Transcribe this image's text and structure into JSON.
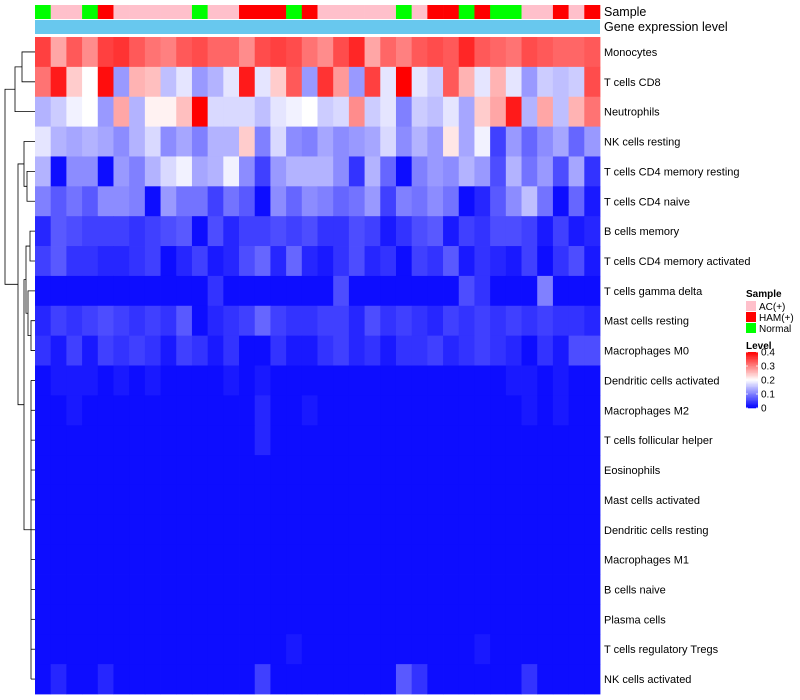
{
  "chart_data": {
    "type": "heatmap",
    "annotation_tracks": [
      {
        "name": "Sample",
        "values": [
          "Normal",
          "AC(+)",
          "AC(+)",
          "Normal",
          "HAM(+)",
          "AC(+)",
          "AC(+)",
          "AC(+)",
          "AC(+)",
          "AC(+)",
          "Normal",
          "AC(+)",
          "AC(+)",
          "HAM(+)",
          "HAM(+)",
          "HAM(+)",
          "Normal",
          "HAM(+)",
          "AC(+)",
          "AC(+)",
          "AC(+)",
          "AC(+)",
          "AC(+)",
          "Normal",
          "AC(+)",
          "HAM(+)",
          "HAM(+)",
          "Normal",
          "HAM(+)",
          "Normal",
          "Normal",
          "AC(+)",
          "AC(+)",
          "HAM(+)",
          "AC(+)",
          "HAM(+)"
        ]
      },
      {
        "name": "Gene expression level",
        "color": "#68c8ee"
      }
    ],
    "rows": [
      {
        "name": "Monocytes",
        "values": [
          0.35,
          0.27,
          0.33,
          0.29,
          0.35,
          0.36,
          0.33,
          0.31,
          0.3,
          0.33,
          0.34,
          0.32,
          0.32,
          0.29,
          0.34,
          0.35,
          0.34,
          0.31,
          0.29,
          0.34,
          0.37,
          0.27,
          0.32,
          0.3,
          0.33,
          0.34,
          0.33,
          0.37,
          0.33,
          0.32,
          0.31,
          0.34,
          0.33,
          0.32,
          0.32,
          0.33
        ]
      },
      {
        "name": "T cells CD8",
        "values": [
          0.31,
          0.38,
          0.24,
          0.2,
          0.39,
          0.12,
          0.26,
          0.25,
          0.15,
          0.18,
          0.12,
          0.14,
          0.18,
          0.38,
          0.18,
          0.24,
          0.33,
          0.12,
          0.36,
          0.28,
          0.12,
          0.35,
          0.18,
          0.4,
          0.18,
          0.16,
          0.33,
          0.26,
          0.18,
          0.26,
          0.18,
          0.12,
          0.16,
          0.15,
          0.16,
          0.34
        ]
      },
      {
        "name": "Neutrophils",
        "values": [
          0.14,
          0.16,
          0.19,
          0.2,
          0.12,
          0.27,
          0.14,
          0.21,
          0.21,
          0.25,
          0.4,
          0.17,
          0.17,
          0.17,
          0.15,
          0.18,
          0.19,
          0.2,
          0.16,
          0.17,
          0.29,
          0.16,
          0.18,
          0.1,
          0.16,
          0.15,
          0.18,
          0.13,
          0.24,
          0.27,
          0.38,
          0.14,
          0.27,
          0.15,
          0.26,
          0.31
        ]
      },
      {
        "name": "NK cells resting",
        "values": [
          0.18,
          0.14,
          0.13,
          0.14,
          0.13,
          0.11,
          0.14,
          0.17,
          0.11,
          0.13,
          0.1,
          0.14,
          0.14,
          0.24,
          0.1,
          0.17,
          0.11,
          0.1,
          0.13,
          0.11,
          0.12,
          0.13,
          0.17,
          0.11,
          0.14,
          0.12,
          0.22,
          0.13,
          0.19,
          0.05,
          0.12,
          0.08,
          0.11,
          0.13,
          0.08,
          0.12
        ]
      },
      {
        "name": "T cells CD4 memory resting",
        "values": [
          0.14,
          0.01,
          0.11,
          0.11,
          0.01,
          0.12,
          0.1,
          0.14,
          0.17,
          0.19,
          0.13,
          0.14,
          0.19,
          0.11,
          0.05,
          0.12,
          0.14,
          0.14,
          0.14,
          0.11,
          0.04,
          0.14,
          0.08,
          0.01,
          0.1,
          0.12,
          0.11,
          0.14,
          0.12,
          0.06,
          0.14,
          0.09,
          0.12,
          0.06,
          0.13,
          0.04
        ]
      },
      {
        "name": "T cells CD4 naive",
        "values": [
          0.1,
          0.07,
          0.09,
          0.07,
          0.11,
          0.11,
          0.1,
          0.01,
          0.12,
          0.09,
          0.09,
          0.05,
          0.09,
          0.07,
          0.01,
          0.11,
          0.08,
          0.11,
          0.1,
          0.08,
          0.09,
          0.12,
          0.05,
          0.1,
          0.09,
          0.11,
          0.09,
          0.01,
          0.03,
          0.07,
          0.11,
          0.15,
          0.09,
          0.01,
          0.08,
          0.02
        ]
      },
      {
        "name": "B cells memory",
        "values": [
          0.03,
          0.07,
          0.06,
          0.05,
          0.05,
          0.05,
          0.04,
          0.05,
          0.06,
          0.07,
          0.01,
          0.06,
          0.03,
          0.05,
          0.05,
          0.06,
          0.05,
          0.06,
          0.04,
          0.04,
          0.06,
          0.05,
          0.02,
          0.04,
          0.06,
          0.07,
          0.02,
          0.05,
          0.04,
          0.06,
          0.06,
          0.05,
          0.02,
          0.05,
          0.02,
          0.03
        ]
      },
      {
        "name": "T cells CD4 memory activated",
        "values": [
          0.05,
          0.07,
          0.04,
          0.04,
          0.03,
          0.03,
          0.04,
          0.05,
          0.01,
          0.03,
          0.05,
          0.02,
          0.03,
          0.06,
          0.08,
          0.03,
          0.08,
          0.03,
          0.02,
          0.04,
          0.06,
          0.03,
          0.04,
          0.01,
          0.05,
          0.04,
          0.07,
          0.02,
          0.04,
          0.03,
          0.02,
          0.05,
          0.01,
          0.04,
          0.06,
          0.02
        ]
      },
      {
        "name": "T cells gamma delta",
        "values": [
          0.01,
          0.01,
          0.01,
          0.01,
          0.01,
          0.01,
          0.01,
          0.01,
          0.01,
          0.01,
          0.01,
          0.04,
          0.01,
          0.01,
          0.01,
          0.01,
          0.01,
          0.01,
          0.01,
          0.06,
          0.01,
          0.01,
          0.01,
          0.01,
          0.01,
          0.01,
          0.01,
          0.06,
          0.04,
          0.01,
          0.01,
          0.01,
          0.1,
          0.01,
          0.01,
          0.01
        ]
      },
      {
        "name": "Mast cells resting",
        "values": [
          0.03,
          0.05,
          0.04,
          0.05,
          0.06,
          0.05,
          0.04,
          0.05,
          0.04,
          0.07,
          0.01,
          0.03,
          0.04,
          0.05,
          0.08,
          0.05,
          0.04,
          0.04,
          0.05,
          0.05,
          0.03,
          0.06,
          0.04,
          0.05,
          0.04,
          0.03,
          0.05,
          0.04,
          0.05,
          0.04,
          0.05,
          0.04,
          0.05,
          0.04,
          0.04,
          0.03
        ]
      },
      {
        "name": "Macrophages M0",
        "values": [
          0.04,
          0.02,
          0.05,
          0.02,
          0.05,
          0.04,
          0.05,
          0.04,
          0.02,
          0.05,
          0.04,
          0.02,
          0.04,
          0.01,
          0.01,
          0.04,
          0.02,
          0.02,
          0.04,
          0.05,
          0.03,
          0.04,
          0.02,
          0.04,
          0.04,
          0.05,
          0.03,
          0.04,
          0.05,
          0.04,
          0.03,
          0.01,
          0.04,
          0.02,
          0.06,
          0.06
        ]
      },
      {
        "name": "Dendritic cells activated",
        "values": [
          0.01,
          0.02,
          0.02,
          0.02,
          0.01,
          0.02,
          0.01,
          0.02,
          0.01,
          0.01,
          0.01,
          0.01,
          0.02,
          0.01,
          0.02,
          0.01,
          0.01,
          0.01,
          0.01,
          0.01,
          0.01,
          0.01,
          0.01,
          0.01,
          0.01,
          0.01,
          0.01,
          0.01,
          0.01,
          0.01,
          0.02,
          0.02,
          0.01,
          0.02,
          0.01,
          0.01
        ]
      },
      {
        "name": "Macrophages M2",
        "values": [
          0.01,
          0.01,
          0.02,
          0.01,
          0.01,
          0.01,
          0.01,
          0.01,
          0.01,
          0.01,
          0.01,
          0.01,
          0.01,
          0.01,
          0.03,
          0.01,
          0.01,
          0.02,
          0.01,
          0.01,
          0.01,
          0.01,
          0.01,
          0.01,
          0.01,
          0.01,
          0.01,
          0.01,
          0.01,
          0.01,
          0.01,
          0.02,
          0.01,
          0.02,
          0.01,
          0.01
        ]
      },
      {
        "name": "T cells follicular helper",
        "values": [
          0.01,
          0.01,
          0.01,
          0.01,
          0.01,
          0.01,
          0.01,
          0.01,
          0.01,
          0.01,
          0.01,
          0.01,
          0.01,
          0.01,
          0.03,
          0.01,
          0.01,
          0.01,
          0.01,
          0.01,
          0.01,
          0.01,
          0.01,
          0.01,
          0.01,
          0.01,
          0.01,
          0.01,
          0.01,
          0.01,
          0.01,
          0.01,
          0.01,
          0.01,
          0.01,
          0.01
        ]
      },
      {
        "name": "Eosinophils",
        "values": [
          0.01,
          0.01,
          0.01,
          0.01,
          0.01,
          0.01,
          0.01,
          0.01,
          0.01,
          0.01,
          0.01,
          0.01,
          0.01,
          0.01,
          0.01,
          0.01,
          0.01,
          0.01,
          0.01,
          0.01,
          0.01,
          0.01,
          0.01,
          0.01,
          0.01,
          0.01,
          0.01,
          0.01,
          0.01,
          0.01,
          0.01,
          0.01,
          0.01,
          0.01,
          0.01,
          0.01
        ]
      },
      {
        "name": "Mast cells activated",
        "values": [
          0.01,
          0.01,
          0.01,
          0.01,
          0.01,
          0.01,
          0.01,
          0.01,
          0.01,
          0.01,
          0.01,
          0.01,
          0.01,
          0.01,
          0.01,
          0.01,
          0.01,
          0.01,
          0.01,
          0.01,
          0.01,
          0.01,
          0.01,
          0.01,
          0.01,
          0.01,
          0.01,
          0.01,
          0.01,
          0.01,
          0.01,
          0.01,
          0.01,
          0.01,
          0.01,
          0.01
        ]
      },
      {
        "name": "Dendritic cells resting",
        "values": [
          0.01,
          0.01,
          0.01,
          0.01,
          0.01,
          0.01,
          0.01,
          0.01,
          0.01,
          0.01,
          0.01,
          0.01,
          0.01,
          0.01,
          0.01,
          0.01,
          0.01,
          0.01,
          0.01,
          0.01,
          0.01,
          0.01,
          0.01,
          0.01,
          0.01,
          0.01,
          0.01,
          0.01,
          0.01,
          0.01,
          0.01,
          0.01,
          0.01,
          0.01,
          0.01,
          0.01
        ]
      },
      {
        "name": "Macrophages M1",
        "values": [
          0.01,
          0.01,
          0.01,
          0.01,
          0.01,
          0.01,
          0.01,
          0.01,
          0.01,
          0.01,
          0.01,
          0.01,
          0.01,
          0.01,
          0.01,
          0.01,
          0.01,
          0.01,
          0.01,
          0.01,
          0.01,
          0.01,
          0.01,
          0.01,
          0.01,
          0.01,
          0.01,
          0.01,
          0.01,
          0.01,
          0.01,
          0.01,
          0.01,
          0.01,
          0.01,
          0.01
        ]
      },
      {
        "name": "B cells naive",
        "values": [
          0.01,
          0.01,
          0.01,
          0.01,
          0.01,
          0.01,
          0.01,
          0.01,
          0.01,
          0.01,
          0.01,
          0.01,
          0.01,
          0.01,
          0.01,
          0.01,
          0.01,
          0.01,
          0.01,
          0.01,
          0.01,
          0.01,
          0.01,
          0.01,
          0.01,
          0.01,
          0.01,
          0.01,
          0.01,
          0.01,
          0.01,
          0.01,
          0.01,
          0.01,
          0.01,
          0.01
        ]
      },
      {
        "name": "Plasma cells",
        "values": [
          0.01,
          0.01,
          0.01,
          0.01,
          0.01,
          0.01,
          0.01,
          0.01,
          0.01,
          0.01,
          0.01,
          0.01,
          0.01,
          0.01,
          0.01,
          0.01,
          0.01,
          0.01,
          0.01,
          0.01,
          0.01,
          0.01,
          0.01,
          0.01,
          0.01,
          0.01,
          0.01,
          0.01,
          0.01,
          0.01,
          0.01,
          0.01,
          0.01,
          0.01,
          0.01,
          0.01
        ]
      },
      {
        "name": "T cells regulatory  Tregs",
        "values": [
          0.01,
          0.01,
          0.01,
          0.01,
          0.01,
          0.01,
          0.01,
          0.01,
          0.01,
          0.01,
          0.01,
          0.01,
          0.01,
          0.01,
          0.01,
          0.01,
          0.02,
          0.01,
          0.01,
          0.01,
          0.01,
          0.01,
          0.01,
          0.01,
          0.01,
          0.01,
          0.01,
          0.01,
          0.02,
          0.01,
          0.01,
          0.01,
          0.01,
          0.01,
          0.01,
          0.01
        ]
      },
      {
        "name": "NK cells activated",
        "values": [
          0.01,
          0.03,
          0.01,
          0.01,
          0.03,
          0.01,
          0.01,
          0.01,
          0.01,
          0.01,
          0.01,
          0.01,
          0.01,
          0.01,
          0.05,
          0.01,
          0.01,
          0.01,
          0.01,
          0.01,
          0.01,
          0.01,
          0.01,
          0.07,
          0.04,
          0.01,
          0.01,
          0.01,
          0.01,
          0.01,
          0.01,
          0.04,
          0.01,
          0.01,
          0.01,
          0.01
        ]
      }
    ],
    "color_scale": {
      "min": 0,
      "max": 0.4,
      "low_color": "#0000ff",
      "mid_color": "#ffffff",
      "high_color": "#ff0000",
      "mid_value": 0.2
    },
    "legends": {
      "sample": {
        "title": "Sample",
        "entries": [
          {
            "label": "AC(+)",
            "color": "#ffc0cb"
          },
          {
            "label": "HAM(+)",
            "color": "#ff0000"
          },
          {
            "label": "Normal",
            "color": "#00ff00"
          }
        ]
      },
      "level": {
        "title": "Level",
        "ticks": [
          "0.4",
          "0.3",
          "0.2",
          "0.1",
          "0"
        ],
        "tick_values": [
          0.4,
          0.3,
          0.2,
          0.1,
          0
        ]
      }
    }
  }
}
